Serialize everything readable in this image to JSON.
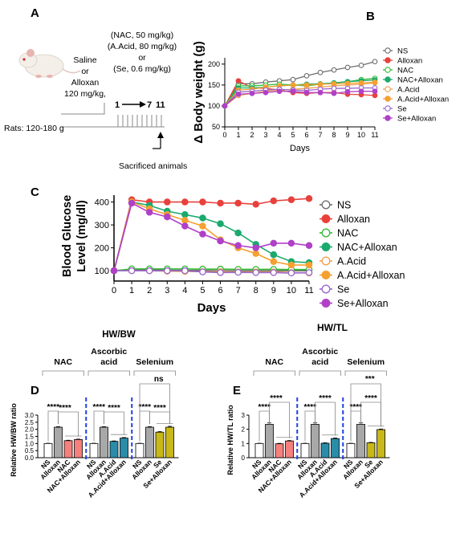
{
  "panelA": {
    "letter": "A",
    "saline": "Saline",
    "or1": "or",
    "alloxan": "Alloxan",
    "alloxan_dose": "120 mg/kg,",
    "dose1": "(NAC, 50 mg/kg)",
    "dose2": "(A.Acid, 80 mg/kg)",
    "or2": "or",
    "dose3": "(Se, 0.6 mg/kg)",
    "rats": "Rats: 120-180 g",
    "tl_start": "1",
    "tl_7": "7",
    "tl_11": "11",
    "sacrificed": "Sacrificed animals",
    "colors": {
      "mouse_body": "#f4efe8",
      "mouse_ear": "#e8b4b0"
    }
  },
  "colors": {
    "NS": "#6e6e6e",
    "Alloxan": "#e8413c",
    "NAC": "#33bb33",
    "NAC+Alloxan": "#1aaa6e",
    "A.Acid": "#f0a050",
    "A.Acid+Alloxan": "#f5a030",
    "Se": "#9966cc",
    "Se+Alloxan": "#b040c8",
    "bar_alloxan": "#a8a8a8",
    "bar_nac": "#f5807c",
    "bar_aa": "#2a8ca8",
    "bar_se": "#c8b818",
    "divider": "#2040e0"
  },
  "chart_data": [
    {
      "id": "B",
      "letter": "B",
      "type": "line",
      "ylabel": "Δ Body weight (g)",
      "xlabel": "Days",
      "xlim": [
        0,
        11
      ],
      "ylim": [
        50,
        215
      ],
      "xticks": [
        0,
        1,
        2,
        3,
        4,
        5,
        6,
        7,
        8,
        9,
        10,
        11
      ],
      "yticks": [
        50,
        100,
        150,
        200
      ],
      "x": [
        0,
        1,
        2,
        3,
        4,
        5,
        6,
        7,
        8,
        9,
        10,
        11
      ],
      "series": [
        {
          "name": "NS",
          "values": [
            100,
            153,
            153,
            157,
            160,
            163,
            172,
            180,
            186,
            192,
            197,
            206
          ]
        },
        {
          "name": "Alloxan",
          "values": [
            100,
            160,
            143,
            142,
            138,
            132,
            130,
            132,
            132,
            128,
            127,
            125
          ]
        },
        {
          "name": "NAC",
          "values": [
            100,
            148,
            148,
            150,
            152,
            150,
            148,
            152,
            155,
            158,
            163,
            166
          ]
        },
        {
          "name": "NAC+Alloxan",
          "values": [
            100,
            143,
            143,
            145,
            148,
            150,
            152,
            153,
            155,
            158,
            160,
            162
          ]
        },
        {
          "name": "A.Acid",
          "values": [
            100,
            125,
            130,
            135,
            138,
            140,
            142,
            145,
            148,
            150,
            152,
            155
          ]
        },
        {
          "name": "A.Acid+Alloxan",
          "values": [
            100,
            138,
            140,
            145,
            148,
            150,
            150,
            152,
            153,
            154,
            155,
            157
          ]
        },
        {
          "name": "Se",
          "values": [
            100,
            133,
            135,
            138,
            140,
            138,
            137,
            140,
            142,
            142,
            143,
            143
          ]
        },
        {
          "name": "Se+Alloxan",
          "values": [
            100,
            128,
            130,
            132,
            135,
            135,
            132,
            132,
            130,
            134,
            135,
            135
          ]
        }
      ],
      "legend": [
        "NS",
        "Alloxan",
        "NAC",
        "NAC+Alloxan",
        "A.Acid",
        "A.Acid+Alloxan",
        "Se",
        "Se+Alloxan"
      ],
      "legend_position": "right"
    },
    {
      "id": "C",
      "letter": "C",
      "type": "line",
      "ylabel_line1": "Blood Glucose",
      "ylabel_line2": "Level (mg/dl)",
      "xlabel": "Days",
      "xlim": [
        0,
        11
      ],
      "ylim": [
        55,
        430
      ],
      "xticks": [
        0,
        1,
        2,
        3,
        4,
        5,
        6,
        7,
        8,
        9,
        10,
        11
      ],
      "yticks": [
        100,
        200,
        300,
        400
      ],
      "x": [
        0,
        1,
        2,
        3,
        4,
        5,
        6,
        7,
        8,
        9,
        10,
        11
      ],
      "series": [
        {
          "name": "NS",
          "values": [
            100,
            105,
            105,
            102,
            102,
            101,
            100,
            100,
            100,
            100,
            100,
            100
          ]
        },
        {
          "name": "Alloxan",
          "values": [
            100,
            410,
            400,
            400,
            400,
            400,
            395,
            395,
            390,
            405,
            410,
            415
          ]
        },
        {
          "name": "NAC",
          "values": [
            100,
            108,
            108,
            108,
            108,
            107,
            107,
            106,
            106,
            106,
            105,
            105
          ]
        },
        {
          "name": "NAC+Alloxan",
          "values": [
            100,
            400,
            385,
            360,
            345,
            330,
            305,
            265,
            215,
            170,
            140,
            135
          ]
        },
        {
          "name": "A.Acid",
          "values": [
            100,
            100,
            100,
            98,
            97,
            96,
            96,
            95,
            95,
            95,
            92,
            90
          ]
        },
        {
          "name": "A.Acid+Alloxan",
          "values": [
            100,
            400,
            370,
            345,
            320,
            295,
            235,
            200,
            175,
            140,
            125,
            125
          ]
        },
        {
          "name": "Se",
          "values": [
            100,
            100,
            100,
            100,
            100,
            95,
            92,
            93,
            92,
            92,
            90,
            92
          ]
        },
        {
          "name": "Se+Alloxan",
          "values": [
            100,
            395,
            355,
            335,
            295,
            260,
            230,
            210,
            200,
            220,
            220,
            210
          ]
        }
      ],
      "legend": [
        "NS",
        "Alloxan",
        "NAC",
        "NAC+Alloxan",
        "A.Acid",
        "A.Acid+Alloxan",
        "Se",
        "Se+Alloxan"
      ],
      "legend_position": "right"
    },
    {
      "id": "D",
      "letter": "D",
      "type": "bar",
      "title": "HW/BW",
      "ylabel": "Relative HW/BW ratio",
      "ylim": [
        0,
        3.0
      ],
      "yticks": [
        0.0,
        0.5,
        1.0,
        1.5,
        2.0,
        2.5,
        3.0
      ],
      "group_labels": [
        "NAC",
        "Ascorbic\nacid",
        "Selenium"
      ],
      "categories": [
        "NS",
        "Alloxan",
        "NAC",
        "NAC+Alloxan",
        "NS",
        "Alloxan",
        "A.Acid",
        "A.Acid+Alloxan",
        "NS",
        "Alloxan",
        "Se",
        "Se+Alloxan"
      ],
      "values": [
        1.0,
        2.15,
        1.2,
        1.28,
        1.0,
        2.15,
        1.15,
        1.38,
        1.0,
        2.15,
        1.8,
        2.15
      ],
      "errors": [
        0.02,
        0.04,
        0.03,
        0.03,
        0.02,
        0.04,
        0.03,
        0.04,
        0.02,
        0.04,
        0.04,
        0.06
      ],
      "significance": [
        "****",
        "****",
        "****",
        "****",
        "****",
        "****",
        "ns"
      ]
    },
    {
      "id": "E",
      "letter": "E",
      "type": "bar",
      "title": "HW/TL",
      "ylabel": "Relative HW/TL ratio",
      "ylim": [
        0,
        3.0
      ],
      "yticks": [
        0,
        1,
        2,
        3
      ],
      "group_labels": [
        "NAC",
        "Ascorbic\nacid",
        "Selenium"
      ],
      "categories": [
        "NS",
        "Alloxan",
        "NAC",
        "NAC+Alloxan",
        "NS",
        "Alloxan",
        "A.Acid",
        "A.Acid+Alloxan",
        "NS",
        "Alloxan",
        "Se",
        "Se+Alloxan"
      ],
      "values": [
        1.0,
        2.35,
        0.98,
        1.18,
        1.0,
        2.35,
        1.02,
        1.35,
        1.0,
        2.35,
        1.05,
        1.98
      ],
      "errors": [
        0.02,
        0.1,
        0.03,
        0.03,
        0.02,
        0.1,
        0.03,
        0.04,
        0.02,
        0.1,
        0.03,
        0.04
      ],
      "significance": [
        "****",
        "****",
        "****",
        "****",
        "****",
        "****",
        "***"
      ]
    }
  ]
}
